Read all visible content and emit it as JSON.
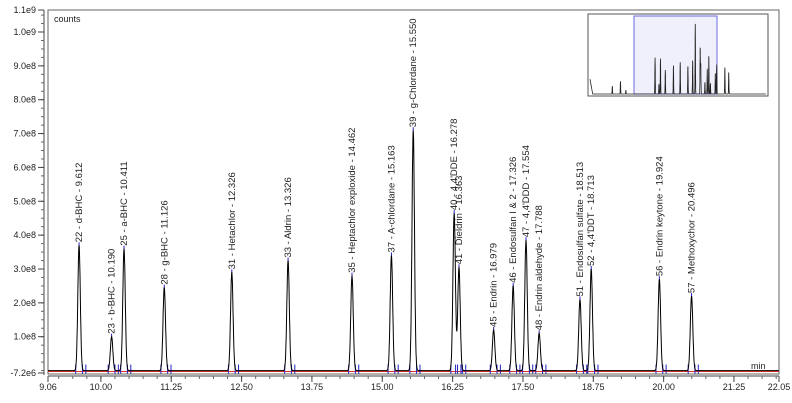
{
  "chart_data": {
    "type": "line",
    "title": "",
    "ylabel": "counts",
    "xlabel": "min",
    "xlim": [
      9.06,
      22.05
    ],
    "ylim": [
      -7200000,
      1065000000
    ],
    "xticks": [
      9.06,
      10.0,
      11.25,
      12.5,
      13.75,
      15.0,
      16.25,
      17.5,
      18.75,
      20.0,
      21.25,
      22.05
    ],
    "xtick_labels": [
      "9.06",
      "10.00",
      "11.25",
      "12.50",
      "13.75",
      "15.00",
      "16.25",
      "17.50",
      "18.75",
      "20.00",
      "21.25",
      "22.05"
    ],
    "yticks": [
      -7200000,
      100000000,
      200000000,
      300000000,
      400000000,
      500000000,
      600000000,
      700000000,
      800000000,
      900000000,
      1000000000,
      1100000000
    ],
    "ytick_labels": [
      "-7.2e6",
      "1.0e8",
      "2.0e8",
      "3.0e8",
      "4.0e8",
      "5.0e8",
      "6.0e8",
      "7.0e8",
      "8.0e8",
      "9.0e8",
      "1.0e9",
      "1.1e9"
    ],
    "grid": false,
    "series_color": "#000000",
    "baseline_color": "#e03030",
    "marker_color": "#2020c0",
    "peaks": [
      {
        "rt": 9.612,
        "height": 370000000,
        "label": "22 - d-BHC - 9.612"
      },
      {
        "rt": 10.19,
        "height": 100000000,
        "label": "23 - b-BHC - 10.190"
      },
      {
        "rt": 10.411,
        "height": 360000000,
        "label": "25 - a-BHC - 10.411"
      },
      {
        "rt": 11.126,
        "height": 245000000,
        "label": "28 - g-BHC - 11.126"
      },
      {
        "rt": 12.326,
        "height": 290000000,
        "label": "31 - Hetachlor - 12.326"
      },
      {
        "rt": 13.326,
        "height": 325000000,
        "label": "33 - Aldrin - 13.326"
      },
      {
        "rt": 14.462,
        "height": 280000000,
        "label": "35 - Heptachlor exploxide - 14.462"
      },
      {
        "rt": 15.163,
        "height": 340000000,
        "label": "37 - A-chlordane - 15.163"
      },
      {
        "rt": 15.55,
        "height": 710000000,
        "label": "39 - g-Chlordane - 15.550"
      },
      {
        "rt": 16.278,
        "height": 465000000,
        "label": "40 - 4,4'DDE - 16.278"
      },
      {
        "rt": 16.363,
        "height": 305000000,
        "label": "41 - Dieldrin - 16.363"
      },
      {
        "rt": 16.979,
        "height": 120000000,
        "label": "45 - Endrin - 16.979"
      },
      {
        "rt": 17.326,
        "height": 250000000,
        "label": "46 - Endosulfan I & 2 - 17.326"
      },
      {
        "rt": 17.554,
        "height": 385000000,
        "label": "47 - 4,4'DDD - 17.554"
      },
      {
        "rt": 17.788,
        "height": 110000000,
        "label": "48 - Endrin aldehyde - 17.788"
      },
      {
        "rt": 18.513,
        "height": 210000000,
        "label": "51 - Endosulfan sulfate - 18.513"
      },
      {
        "rt": 18.713,
        "height": 300000000,
        "label": "52 - 4,4'DDT - 18.713"
      },
      {
        "rt": 19.924,
        "height": 270000000,
        "label": "56 - Endrin keytone - 19.924"
      },
      {
        "rt": 20.496,
        "height": 220000000,
        "label": "57 - Methoxychor - 20.496"
      }
    ],
    "overview_inset": {
      "highlight_color": "#6a6ae0",
      "highlight_fill": "#f0f0fc"
    }
  }
}
